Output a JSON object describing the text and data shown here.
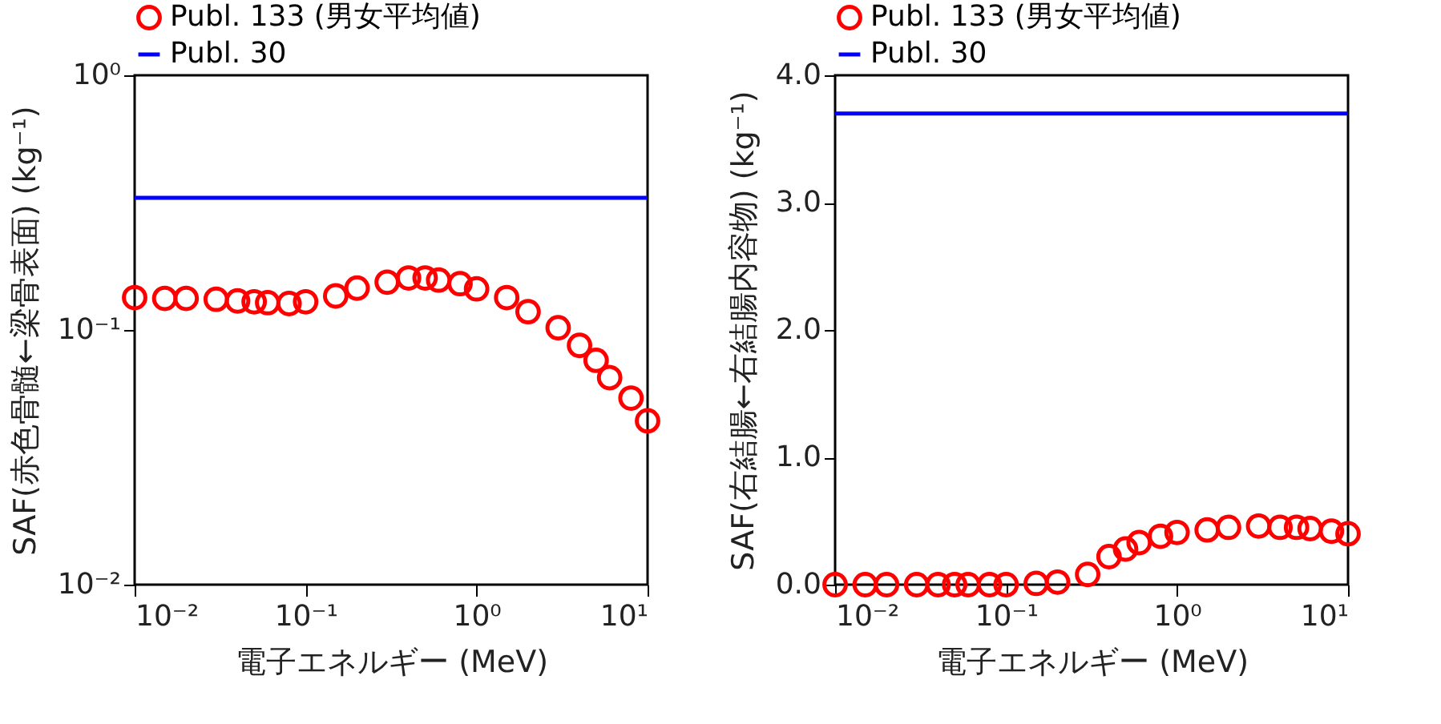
{
  "chart_data": [
    {
      "type": "scatter",
      "xlabel": "電子エネルギー (MeV)",
      "ylabel": "SAF(赤色骨髄←梁骨表面) (kg⁻¹)",
      "log": "xy",
      "xlim": [
        0.01,
        10
      ],
      "ylim": [
        0.01,
        1
      ],
      "xticks": [
        {
          "value": 0.01,
          "label": "10⁻²"
        },
        {
          "value": 0.1,
          "label": "10⁻¹"
        },
        {
          "value": 1,
          "label": "10⁰"
        },
        {
          "value": 10,
          "label": "10¹"
        }
      ],
      "yticks": [
        {
          "value": 0.01,
          "label": "10⁻²"
        },
        {
          "value": 0.1,
          "label": "10⁻¹"
        },
        {
          "value": 1,
          "label": "10⁰"
        }
      ],
      "legend": "top",
      "x": [
        0.01,
        0.015,
        0.02,
        0.03,
        0.04,
        0.05,
        0.06,
        0.08,
        0.1,
        0.15,
        0.2,
        0.3,
        0.4,
        0.5,
        0.6,
        0.8,
        1,
        1.5,
        2,
        3,
        4,
        5,
        6,
        8,
        10
      ],
      "series": [
        {
          "name": "Publ. 133 (男女平均値)",
          "marker": "circle",
          "color": "#ff0000",
          "values": [
            0.134,
            0.133,
            0.133,
            0.132,
            0.13,
            0.129,
            0.128,
            0.127,
            0.129,
            0.136,
            0.146,
            0.154,
            0.16,
            0.16,
            0.157,
            0.152,
            0.145,
            0.134,
            0.118,
            0.102,
            0.087,
            0.076,
            0.065,
            0.054,
            0.044
          ]
        },
        {
          "name": "Publ. 30",
          "type": "line",
          "color": "#0000ff",
          "line_style": "solid",
          "values": [
            0.33,
            0.33,
            0.33,
            0.33,
            0.33,
            0.33,
            0.33,
            0.33,
            0.33,
            0.33,
            0.33,
            0.33,
            0.33,
            0.33,
            0.33,
            0.33,
            0.33,
            0.33,
            0.33,
            0.33,
            0.33,
            0.33,
            0.33,
            0.33,
            0.33
          ]
        }
      ]
    },
    {
      "type": "scatter",
      "xlabel": "電子エネルギー (MeV)",
      "ylabel": "SAF(右結腸←右結腸内容物) (kg⁻¹)",
      "log": "x",
      "xlim": [
        0.01,
        10
      ],
      "ylim": [
        0,
        4
      ],
      "xticks": [
        {
          "value": 0.01,
          "label": "10⁻²"
        },
        {
          "value": 0.1,
          "label": "10⁻¹"
        },
        {
          "value": 1,
          "label": "10⁰"
        },
        {
          "value": 10,
          "label": "10¹"
        }
      ],
      "yticks": [
        {
          "value": 0,
          "label": "0.0"
        },
        {
          "value": 1,
          "label": "1.0"
        },
        {
          "value": 2,
          "label": "2.0"
        },
        {
          "value": 3,
          "label": "3.0"
        },
        {
          "value": 4,
          "label": "4.0"
        }
      ],
      "legend": "top",
      "x": [
        0.01,
        0.015,
        0.02,
        0.03,
        0.04,
        0.05,
        0.06,
        0.08,
        0.1,
        0.15,
        0.2,
        0.3,
        0.4,
        0.5,
        0.6,
        0.8,
        1,
        1.5,
        2,
        3,
        4,
        5,
        6,
        8,
        10
      ],
      "series": [
        {
          "name": "Publ. 133 (男女平均値)",
          "marker": "circle",
          "color": "#ff0000",
          "values": [
            0,
            0,
            0,
            0,
            0,
            0,
            0,
            0,
            0,
            0.01,
            0.02,
            0.08,
            0.22,
            0.28,
            0.33,
            0.38,
            0.41,
            0.43,
            0.45,
            0.46,
            0.45,
            0.45,
            0.44,
            0.42,
            0.4
          ]
        },
        {
          "name": "Publ. 30",
          "type": "line",
          "color": "#0000ff",
          "line_style": "solid",
          "values": [
            3.7,
            3.7,
            3.7,
            3.7,
            3.7,
            3.7,
            3.7,
            3.7,
            3.7,
            3.7,
            3.7,
            3.7,
            3.7,
            3.7,
            3.7,
            3.7,
            3.7,
            3.7,
            3.7,
            3.7,
            3.7,
            3.7,
            3.7,
            3.7,
            3.7
          ]
        }
      ]
    }
  ]
}
